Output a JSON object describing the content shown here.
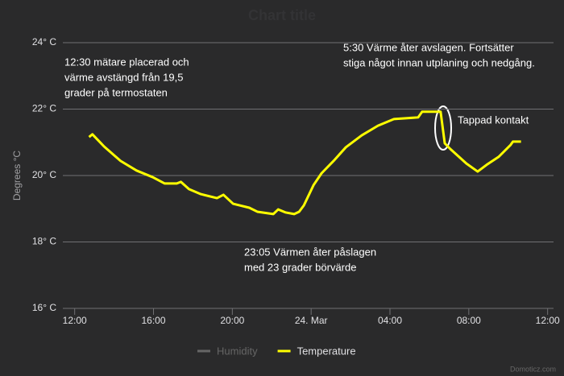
{
  "chart_data": {
    "type": "line",
    "title": "Chart title",
    "y_label": "Degrees °C",
    "x": [
      12.73,
      12.9,
      13.5,
      14.33,
      15.14,
      15.96,
      16.57,
      17.18,
      17.39,
      17.8,
      18.4,
      19.22,
      19.55,
      20.04,
      20.86,
      21.27,
      22.08,
      22.33,
      22.69,
      23.14,
      23.39,
      23.63,
      24.12,
      24.53,
      25.14,
      25.76,
      26.57,
      27.39,
      28.2,
      29.43,
      29.63,
      30.57,
      30.78,
      31.06,
      31.88,
      32.45,
      32.9,
      33.51,
      34.12,
      34.24,
      34.65
    ],
    "series": [
      {
        "name": "Humidity",
        "color": "#666666",
        "values": [
          null,
          null,
          null,
          null,
          null,
          null,
          null,
          null,
          null,
          null,
          null,
          null,
          null,
          null,
          null,
          null,
          null,
          null,
          null,
          null,
          null,
          null,
          null,
          null,
          null,
          null,
          null,
          null,
          null,
          null,
          null,
          null,
          null,
          null,
          null,
          null,
          null,
          null,
          null,
          null,
          null
        ]
      },
      {
        "name": "Temperature",
        "color": "#ffff00",
        "values": [
          21.16,
          21.24,
          20.87,
          20.44,
          20.15,
          19.95,
          19.76,
          19.76,
          19.81,
          19.59,
          19.44,
          19.32,
          19.42,
          19.15,
          19.03,
          18.91,
          18.84,
          18.98,
          18.89,
          18.84,
          18.91,
          19.1,
          19.71,
          20.07,
          20.44,
          20.85,
          21.21,
          21.5,
          21.7,
          21.75,
          21.92,
          21.92,
          20.97,
          20.8,
          20.36,
          20.12,
          20.32,
          20.56,
          20.92,
          21.02,
          21.02
        ]
      }
    ],
    "xlim": [
      11.4,
      36.3
    ],
    "xticks": [
      {
        "value": 12,
        "label": "12:00"
      },
      {
        "value": 16,
        "label": "16:00"
      },
      {
        "value": 20,
        "label": "20:00"
      },
      {
        "value": 24,
        "label": "24. Mar"
      },
      {
        "value": 28,
        "label": "04:00"
      },
      {
        "value": 32,
        "label": "08:00"
      },
      {
        "value": 36,
        "label": "12:00"
      }
    ],
    "ylim": [
      16,
      24
    ],
    "yticks": [
      {
        "value": 16,
        "label": "16° C"
      },
      {
        "value": 18,
        "label": "18° C"
      },
      {
        "value": 20,
        "label": "20° C"
      },
      {
        "value": 22,
        "label": "22° C"
      },
      {
        "value": 24,
        "label": "24° C"
      }
    ],
    "grid": true,
    "annotations": [
      {
        "lines": [
          "12:30 mätare placerad och",
          "värme avstängd från 19,5",
          "grader på termostaten"
        ]
      },
      {
        "lines": [
          "5:30 Värme åter avslagen. Fortsätter",
          "stiga något innan utplaning och nedgång."
        ]
      },
      {
        "lines": [
          "Tappad kontakt"
        ]
      },
      {
        "lines": [
          "23:05 Värmen åter påslagen",
          "med 23 grader börvärde"
        ]
      }
    ],
    "credits": "Domoticz.com"
  }
}
